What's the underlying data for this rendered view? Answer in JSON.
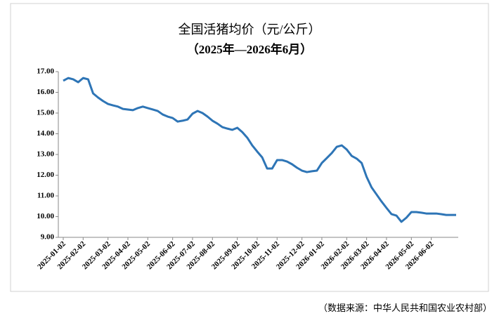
{
  "chart_data": {
    "type": "line",
    "title": "全国活猪均价（元/公斤）",
    "subtitle": "（2025年—2026年6月）",
    "source": "（数据来源：中华人民共和国农业农村部）",
    "categories": [
      "2025-01-02",
      null,
      null,
      null,
      "2025-02-02",
      null,
      null,
      null,
      null,
      "2025-03-02",
      null,
      null,
      null,
      "2025-04-02",
      null,
      null,
      null,
      "2025-05-02",
      null,
      null,
      null,
      null,
      "2025-06-02",
      null,
      null,
      null,
      "2025-07-02",
      null,
      null,
      null,
      "2025-08-02",
      null,
      null,
      null,
      null,
      "2025-09-02",
      null,
      null,
      null,
      "2025-10-02",
      null,
      null,
      null,
      "2025-11-02",
      null,
      null,
      null,
      null,
      "2025-12-02",
      null,
      null,
      null,
      "2026-01-02",
      null,
      null,
      null,
      null,
      "2026-02-02",
      null,
      null,
      null,
      "2026-03-02",
      null,
      null,
      null,
      "2026-04-02",
      null,
      null,
      null,
      null,
      "2026-05-02",
      null,
      null,
      null,
      "2026-06-02",
      null,
      null,
      null,
      null,
      null
    ],
    "series": [
      {
        "color": "#2e75b6",
        "values": [
          16.56,
          16.69,
          16.63,
          16.49,
          16.69,
          16.63,
          15.95,
          15.75,
          15.58,
          15.44,
          15.37,
          15.31,
          15.2,
          15.17,
          15.14,
          15.24,
          15.31,
          15.24,
          15.17,
          15.1,
          14.93,
          14.83,
          14.76,
          14.59,
          14.63,
          14.69,
          14.97,
          15.1,
          15.0,
          14.83,
          14.63,
          14.49,
          14.32,
          14.25,
          14.19,
          14.29,
          14.08,
          13.81,
          13.44,
          13.14,
          12.86,
          12.32,
          12.32,
          12.73,
          12.73,
          12.66,
          12.53,
          12.36,
          12.22,
          12.15,
          12.19,
          12.22,
          12.59,
          12.83,
          13.07,
          13.37,
          13.44,
          13.24,
          12.93,
          12.8,
          12.59,
          11.92,
          11.41,
          11.07,
          10.73,
          10.42,
          10.12,
          10.05,
          9.75,
          9.95,
          10.22,
          10.22,
          10.19,
          10.15,
          10.15,
          10.15,
          10.12,
          10.08,
          10.08,
          10.08
        ]
      }
    ],
    "ylim": [
      9,
      17
    ],
    "yticks": [
      {
        "value": 9,
        "label": "9.00"
      },
      {
        "value": 10,
        "label": "10.00"
      },
      {
        "value": 11,
        "label": "11.00"
      },
      {
        "value": 12,
        "label": "12.00"
      },
      {
        "value": 13,
        "label": "13.00"
      },
      {
        "value": 14,
        "label": "14.00"
      },
      {
        "value": 15,
        "label": "15.00"
      },
      {
        "value": 16,
        "label": "16.00"
      },
      {
        "value": 17,
        "label": "17.00"
      }
    ],
    "grid": false
  }
}
